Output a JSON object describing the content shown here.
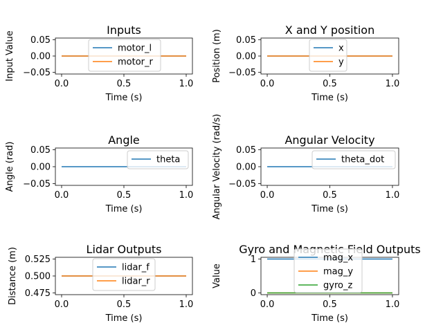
{
  "chart_data": [
    {
      "type": "line",
      "title": "Inputs",
      "xlabel": "Time (s)",
      "ylabel": "Input Value",
      "xlim": [
        -0.05,
        1.05
      ],
      "ylim": [
        -0.055,
        0.055
      ],
      "xticks": [
        0.0,
        0.5,
        1.0
      ],
      "xtick_labels": [
        "0.0",
        "0.5",
        "1.0"
      ],
      "yticks": [
        0.05,
        0.0,
        -0.05
      ],
      "ytick_labels": [
        "0.05",
        "0.00",
        "−0.05"
      ],
      "legend": "upper-center",
      "series": [
        {
          "name": "motor_l",
          "color": "#1f77b4",
          "x": [
            0.0,
            1.0
          ],
          "y": [
            0.0,
            0.0
          ]
        },
        {
          "name": "motor_r",
          "color": "#ff7f0e",
          "x": [
            0.0,
            1.0
          ],
          "y": [
            0.0,
            0.0
          ]
        }
      ]
    },
    {
      "type": "line",
      "title": "X and Y position",
      "xlabel": "Time (s)",
      "ylabel": "Position (m)",
      "xlim": [
        -0.05,
        1.05
      ],
      "ylim": [
        -0.055,
        0.055
      ],
      "xticks": [
        0.0,
        0.5,
        1.0
      ],
      "xtick_labels": [
        "0.0",
        "0.5",
        "1.0"
      ],
      "yticks": [
        0.05,
        0.0,
        -0.05
      ],
      "ytick_labels": [
        "0.05",
        "0.00",
        "−0.05"
      ],
      "legend": "upper-center",
      "series": [
        {
          "name": "x",
          "color": "#1f77b4",
          "x": [
            0.0,
            1.0
          ],
          "y": [
            0.0,
            0.0
          ]
        },
        {
          "name": "y",
          "color": "#ff7f0e",
          "x": [
            0.0,
            1.0
          ],
          "y": [
            0.0,
            0.0
          ]
        }
      ]
    },
    {
      "type": "line",
      "title": "Angle",
      "xlabel": "Time (s)",
      "ylabel": "Angle (rad)",
      "xlim": [
        -0.05,
        1.05
      ],
      "ylim": [
        -0.055,
        0.055
      ],
      "xticks": [
        0.0,
        0.5,
        1.0
      ],
      "xtick_labels": [
        "0.0",
        "0.5",
        "1.0"
      ],
      "yticks": [
        0.05,
        0.0,
        -0.05
      ],
      "ytick_labels": [
        "0.05",
        "0.00",
        "−0.05"
      ],
      "legend": "upper-right",
      "series": [
        {
          "name": "theta",
          "color": "#1f77b4",
          "x": [
            0.0,
            1.0
          ],
          "y": [
            0.0,
            0.0
          ]
        }
      ]
    },
    {
      "type": "line",
      "title": "Angular Velocity",
      "xlabel": "Time (s)",
      "ylabel": "Angular Velocity (rad/s)",
      "xlim": [
        -0.05,
        1.05
      ],
      "ylim": [
        -0.055,
        0.055
      ],
      "xticks": [
        0.0,
        0.5,
        1.0
      ],
      "xtick_labels": [
        "0.0",
        "0.5",
        "1.0"
      ],
      "yticks": [
        0.05,
        0.0,
        -0.05
      ],
      "ytick_labels": [
        "0.05",
        "0.00",
        "−0.05"
      ],
      "legend": "upper-right",
      "series": [
        {
          "name": "theta_dot",
          "color": "#1f77b4",
          "x": [
            0.0,
            1.0
          ],
          "y": [
            0.0,
            0.0
          ]
        }
      ]
    },
    {
      "type": "line",
      "title": "Lidar Outputs",
      "xlabel": "Time (s)",
      "ylabel": "Distance (m)",
      "xlim": [
        -0.05,
        1.05
      ],
      "ylim": [
        0.4725,
        0.5275
      ],
      "xticks": [
        0.0,
        0.5,
        1.0
      ],
      "xtick_labels": [
        "0.0",
        "0.5",
        "1.0"
      ],
      "yticks": [
        0.525,
        0.5,
        0.475
      ],
      "ytick_labels": [
        "0.525",
        "0.500",
        "0.475"
      ],
      "legend": "upper-center",
      "series": [
        {
          "name": "lidar_f",
          "color": "#1f77b4",
          "x": [
            0.0,
            1.0
          ],
          "y": [
            0.5,
            0.5
          ]
        },
        {
          "name": "lidar_r",
          "color": "#ff7f0e",
          "x": [
            0.0,
            1.0
          ],
          "y": [
            0.5,
            0.5
          ]
        }
      ]
    },
    {
      "type": "line",
      "title": "Gyro and Magnetic Field Outputs",
      "xlabel": "Time (s)",
      "ylabel": "Value",
      "xlim": [
        -0.05,
        1.05
      ],
      "ylim": [
        -0.05,
        1.05
      ],
      "xticks": [
        0.0,
        0.5,
        1.0
      ],
      "xtick_labels": [
        "0.0",
        "0.5",
        "1.0"
      ],
      "yticks": [
        1.0,
        0.0
      ],
      "ytick_labels": [
        "1",
        "0"
      ],
      "legend": "upper-center",
      "series": [
        {
          "name": "mag_x",
          "color": "#1f77b4",
          "x": [
            0.0,
            1.0
          ],
          "y": [
            1.0,
            1.0
          ]
        },
        {
          "name": "mag_y",
          "color": "#ff7f0e",
          "x": [
            0.0,
            1.0
          ],
          "y": [
            0.0,
            0.0
          ]
        },
        {
          "name": "gyro_z",
          "color": "#2ca02c",
          "x": [
            0.0,
            1.0
          ],
          "y": [
            0.0,
            0.0
          ]
        }
      ]
    }
  ]
}
